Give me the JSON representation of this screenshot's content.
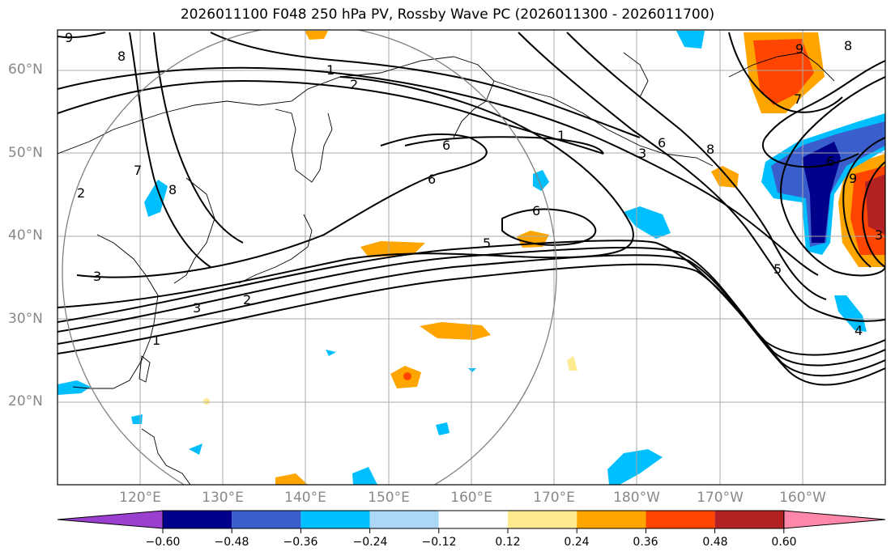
{
  "title": "2026011100 F048 250 hPa PV, Rossby Wave PC (2026011300 - 2026011700)",
  "lat_labels": [
    "60°N",
    "50°N",
    "40°N",
    "30°N",
    "20°N"
  ],
  "lon_labels": [
    "120°E",
    "130°E",
    "140°E",
    "150°E",
    "160°E",
    "170°E",
    "180°W",
    "170°W",
    "160°W"
  ],
  "colorbar": {
    "ticks": [
      "−0.60",
      "−0.48",
      "−0.36",
      "−0.24",
      "−0.12",
      "0.12",
      "0.24",
      "0.36",
      "0.48",
      "0.60"
    ],
    "colors": [
      "#9b3fd1",
      "#00008b",
      "#3a5fcd",
      "#00bfff",
      "#add8f5",
      "#ffffff",
      "#ffea90",
      "#ffa500",
      "#ff4500",
      "#b22222",
      "#ff88aa"
    ]
  },
  "contour_labels": [
    "9",
    "8",
    "1",
    "2",
    "7",
    "8",
    "2",
    "6",
    "6",
    "1",
    "3",
    "6",
    "8",
    "6",
    "5",
    "3",
    "3",
    "2",
    "1",
    "9",
    "8",
    "7",
    "6",
    "5",
    "9",
    "4",
    "3"
  ],
  "colors": {
    "contour": "#000000",
    "grid": "#aaaaaa",
    "circle": "#808080",
    "coast": "#000000"
  }
}
